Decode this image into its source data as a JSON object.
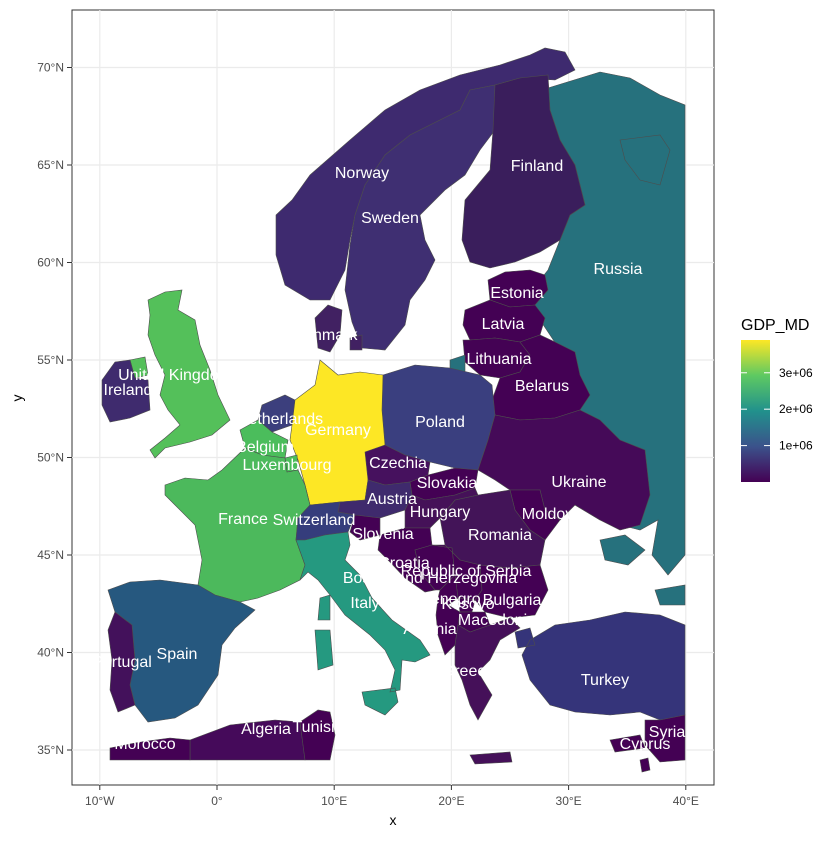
{
  "chart_data": {
    "type": "choropleth",
    "xlabel": "x",
    "ylabel": "y",
    "x_ticks": [
      "10°W",
      "0°",
      "10°E",
      "20°E",
      "30°E",
      "40°E"
    ],
    "y_ticks": [
      "35°N",
      "40°N",
      "45°N",
      "50°N",
      "55°N",
      "60°N",
      "65°N",
      "70°N"
    ],
    "xlim": [
      -12.5,
      42.5
    ],
    "ylim": [
      33.5,
      72.5
    ],
    "legend": {
      "title": "GDP_MD",
      "placement": "right",
      "ticks": [
        "1e+06",
        "2e+06",
        "3e+06"
      ],
      "tick_values": [
        1000000,
        2000000,
        3000000
      ],
      "range": [
        0,
        3900000
      ],
      "colors": [
        "#440154",
        "#3b528b",
        "#21918c",
        "#5ec962",
        "#fde725"
      ]
    },
    "countries": [
      {
        "name": "Norway",
        "label": "Norway",
        "color": "#3e2a6f"
      },
      {
        "name": "Sweden",
        "label": "Sweden",
        "color": "#3f2f72"
      },
      {
        "name": "Finland",
        "label": "Finland",
        "color": "#3a1e5c"
      },
      {
        "name": "Russia",
        "label": "Russia",
        "color": "#26717d"
      },
      {
        "name": "Estonia",
        "label": "Estonia",
        "color": "#440154"
      },
      {
        "name": "Latvia",
        "label": "Latvia",
        "color": "#440154"
      },
      {
        "name": "Lithuania",
        "label": "Lithuania",
        "color": "#440254"
      },
      {
        "name": "Belarus",
        "label": "Belarus",
        "color": "#440154"
      },
      {
        "name": "Poland",
        "label": "Poland",
        "color": "#3a3f7f"
      },
      {
        "name": "Ukraine",
        "label": "Ukraine",
        "color": "#450a58"
      },
      {
        "name": "Moldova",
        "label": "Moldova",
        "color": "#440154"
      },
      {
        "name": "Romania",
        "label": "Romania",
        "color": "#431458"
      },
      {
        "name": "Denmark",
        "label": "Denmark",
        "color": "#412162"
      },
      {
        "name": "Germany",
        "label": "Germany",
        "color": "#fde725"
      },
      {
        "name": "Netherlands",
        "label": "Netherlands",
        "color": "#3c3f7d"
      },
      {
        "name": "Belgium",
        "label": "Belgium",
        "color": "#4bbd5c"
      },
      {
        "name": "Luxembourg",
        "label": "Luxembourg",
        "color": "#4bbd5c"
      },
      {
        "name": "France",
        "label": "France",
        "color": "#4cb95c"
      },
      {
        "name": "United Kingdom",
        "label": "United Kingdom",
        "color": "#54c05a"
      },
      {
        "name": "Ireland",
        "label": "Ireland",
        "color": "#3f2b6e"
      },
      {
        "name": "Czechia",
        "label": "Czechia",
        "color": "#46115e"
      },
      {
        "name": "Slovakia",
        "label": "Slovakia",
        "color": "#440154"
      },
      {
        "name": "Austria",
        "label": "Austria",
        "color": "#3f2a6d"
      },
      {
        "name": "Switzerland",
        "label": "Switzerland",
        "color": "#353d7c"
      },
      {
        "name": "Hungary",
        "label": "Hungary",
        "color": "#451158"
      },
      {
        "name": "Slovenia",
        "label": "Slovenia",
        "color": "#440154"
      },
      {
        "name": "Croatia",
        "label": "Croatia",
        "color": "#440154"
      },
      {
        "name": "Bosnia and Herzegovina",
        "label": "Bosnia and Herzegovina",
        "color": "#440154"
      },
      {
        "name": "Republic of Serbia",
        "label": "Republic of Serbia",
        "color": "#440154"
      },
      {
        "name": "Montenegro",
        "label": "Montenegro",
        "color": "#440154"
      },
      {
        "name": "Kosovo",
        "label": "Kosovo",
        "color": "#440154"
      },
      {
        "name": "Bulgaria",
        "label": "Bulgaria",
        "color": "#440154"
      },
      {
        "name": "Macedonia",
        "label": "Macedonia",
        "color": "#440154"
      },
      {
        "name": "Albania",
        "label": "Albania",
        "color": "#440154"
      },
      {
        "name": "Greece",
        "label": "Greece",
        "color": "#451059"
      },
      {
        "name": "Italy",
        "label": "Italy",
        "color": "#259980"
      },
      {
        "name": "Spain",
        "label": "Spain",
        "color": "#26587f"
      },
      {
        "name": "Portugal",
        "label": "Portugal",
        "color": "#43115b"
      },
      {
        "name": "Turkey",
        "label": "Turkey",
        "color": "#35347a"
      },
      {
        "name": "Syria",
        "label": "Syria",
        "color": "#440154"
      },
      {
        "name": "Cyprus",
        "label": "Cyprus",
        "color": "#440154"
      },
      {
        "name": "Morocco",
        "label": "Morocco",
        "color": "#440154"
      },
      {
        "name": "Algeria",
        "label": "Algeria",
        "color": "#450a5a"
      },
      {
        "name": "Tunisia",
        "label": "Tunisia",
        "color": "#440154"
      },
      {
        "name": "Georgia",
        "label": "",
        "color": "#26717d"
      }
    ]
  }
}
